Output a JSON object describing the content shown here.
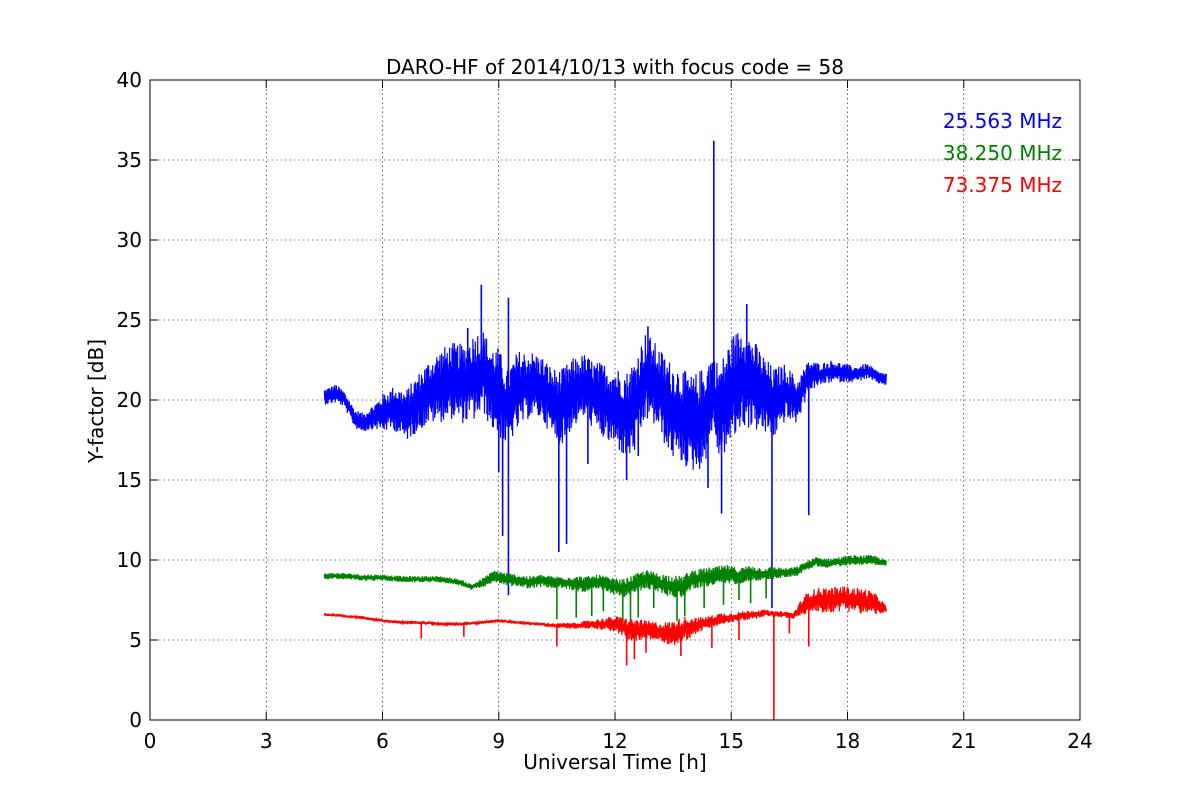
{
  "chart_data": {
    "type": "line",
    "title": "DARO-HF of 2014/10/13 with focus code = 58",
    "xlabel": "Universal Time [h]",
    "ylabel": "Y-factor [dB]",
    "xlim": [
      0,
      24
    ],
    "ylim": [
      0,
      40
    ],
    "xticks": [
      0,
      3,
      6,
      9,
      12,
      15,
      18,
      21,
      24
    ],
    "yticks": [
      0,
      5,
      10,
      15,
      20,
      25,
      30,
      35,
      40
    ],
    "grid": true,
    "legend_position": "top-right",
    "series": [
      {
        "name": "25.563 MHz",
        "color": "#0000ff",
        "x": [
          4.5,
          4.8,
          5.0,
          5.3,
          5.5,
          5.8,
          6.0,
          6.3,
          6.6,
          6.9,
          7.2,
          7.5,
          7.8,
          8.1,
          8.4,
          8.6,
          8.8,
          9.0,
          9.2,
          9.5,
          9.8,
          10.1,
          10.4,
          10.6,
          10.9,
          11.2,
          11.5,
          11.8,
          12.1,
          12.3,
          12.5,
          12.8,
          13.1,
          13.4,
          13.7,
          14.0,
          14.3,
          14.5,
          14.7,
          15.0,
          15.3,
          15.6,
          15.9,
          16.1,
          16.4,
          16.7,
          17.0,
          17.3,
          17.6,
          17.9,
          18.2,
          18.5,
          18.8,
          19.0
        ],
        "y": [
          20.2,
          20.4,
          20.1,
          18.8,
          18.6,
          19.0,
          19.2,
          19.5,
          19.0,
          19.8,
          20.5,
          20.9,
          21.2,
          21.0,
          21.5,
          21.8,
          20.8,
          20.5,
          19.5,
          20.6,
          21.0,
          20.8,
          19.8,
          19.5,
          20.4,
          20.9,
          20.2,
          19.8,
          19.4,
          19.0,
          19.6,
          21.5,
          20.8,
          19.5,
          19.0,
          18.5,
          18.9,
          20.5,
          19.2,
          20.6,
          21.5,
          20.9,
          20.2,
          19.8,
          20.5,
          19.9,
          21.5,
          21.6,
          21.8,
          21.7,
          21.6,
          21.8,
          21.4,
          21.3
        ],
        "amplitude": [
          0.5,
          0.6,
          0.5,
          0.6,
          0.6,
          0.8,
          1.2,
          1.4,
          1.6,
          1.8,
          2.0,
          2.3,
          2.4,
          2.5,
          2.8,
          2.6,
          2.6,
          2.8,
          2.4,
          2.5,
          2.1,
          2.0,
          2.2,
          2.4,
          2.2,
          2.0,
          2.2,
          2.5,
          2.6,
          2.8,
          3.0,
          2.8,
          2.6,
          3.0,
          3.0,
          3.0,
          3.2,
          2.5,
          3.0,
          3.4,
          3.2,
          2.8,
          2.4,
          2.2,
          1.8,
          1.4,
          1.0,
          0.7,
          0.7,
          0.6,
          0.5,
          0.5,
          0.4,
          0.4
        ],
        "spikes": [
          [
            8.55,
            27.2
          ],
          [
            9.25,
            26.4
          ],
          [
            14.55,
            36.2
          ],
          [
            15.4,
            26.0
          ],
          [
            12.85,
            24.6
          ],
          [
            8.2,
            24.5
          ],
          [
            9.25,
            7.8
          ],
          [
            10.55,
            10.5
          ],
          [
            10.75,
            11.0
          ],
          [
            12.3,
            15.0
          ],
          [
            14.4,
            14.5
          ],
          [
            14.75,
            12.9
          ],
          [
            16.05,
            7.0
          ],
          [
            17.0,
            12.8
          ],
          [
            9.1,
            11.5
          ],
          [
            9.0,
            15.5
          ],
          [
            11.3,
            16.0
          ],
          [
            12.6,
            16.5
          ]
        ]
      },
      {
        "name": "38.250 MHz",
        "color": "#008000",
        "x": [
          4.5,
          5.0,
          5.5,
          6.0,
          6.5,
          7.0,
          7.5,
          8.0,
          8.3,
          8.6,
          8.9,
          9.2,
          9.5,
          9.8,
          10.1,
          10.4,
          10.7,
          11.0,
          11.3,
          11.6,
          11.9,
          12.2,
          12.5,
          12.8,
          13.1,
          13.4,
          13.7,
          14.0,
          14.3,
          14.6,
          14.9,
          15.2,
          15.5,
          15.8,
          16.1,
          16.4,
          16.7,
          16.9,
          17.2,
          17.5,
          17.8,
          18.1,
          18.4,
          18.7,
          19.0
        ],
        "y": [
          9.0,
          9.0,
          8.9,
          8.9,
          8.8,
          8.8,
          8.8,
          8.6,
          8.3,
          8.6,
          9.0,
          8.8,
          8.7,
          8.6,
          8.7,
          8.6,
          8.6,
          8.5,
          8.5,
          8.6,
          8.4,
          8.2,
          8.5,
          8.8,
          8.6,
          8.4,
          8.3,
          8.8,
          8.9,
          9.0,
          9.1,
          9.0,
          9.2,
          9.1,
          9.2,
          9.2,
          9.3,
          9.6,
          9.9,
          9.8,
          9.9,
          10.0,
          10.0,
          10.0,
          9.8
        ],
        "amplitude": [
          0.2,
          0.2,
          0.2,
          0.2,
          0.2,
          0.2,
          0.2,
          0.2,
          0.2,
          0.3,
          0.4,
          0.4,
          0.4,
          0.4,
          0.4,
          0.4,
          0.4,
          0.5,
          0.5,
          0.5,
          0.5,
          0.6,
          0.6,
          0.6,
          0.6,
          0.7,
          0.7,
          0.6,
          0.6,
          0.6,
          0.6,
          0.5,
          0.5,
          0.4,
          0.4,
          0.3,
          0.3,
          0.3,
          0.3,
          0.3,
          0.3,
          0.3,
          0.3,
          0.3,
          0.2
        ],
        "spikes": [
          [
            10.5,
            6.3
          ],
          [
            11.0,
            6.4
          ],
          [
            11.4,
            6.5
          ],
          [
            11.7,
            6.8
          ],
          [
            12.2,
            6.0
          ],
          [
            12.4,
            6.2
          ],
          [
            12.6,
            6.4
          ],
          [
            13.0,
            7.0
          ],
          [
            13.6,
            6.2
          ],
          [
            13.8,
            6.5
          ],
          [
            14.3,
            7.0
          ],
          [
            14.8,
            7.2
          ],
          [
            15.2,
            7.5
          ],
          [
            15.5,
            7.3
          ],
          [
            15.9,
            7.6
          ]
        ]
      },
      {
        "name": "73.375 MHz",
        "color": "#ff0000",
        "x": [
          4.5,
          5.0,
          5.5,
          6.0,
          6.5,
          7.0,
          7.5,
          8.0,
          8.5,
          9.0,
          9.5,
          10.0,
          10.5,
          11.0,
          11.5,
          12.0,
          12.3,
          12.6,
          12.9,
          13.2,
          13.5,
          13.8,
          14.1,
          14.4,
          14.7,
          15.0,
          15.3,
          15.6,
          15.9,
          16.1,
          16.4,
          16.6,
          16.8,
          17.0,
          17.3,
          17.6,
          17.9,
          18.2,
          18.5,
          18.8,
          19.0
        ],
        "y": [
          6.6,
          6.5,
          6.4,
          6.2,
          6.1,
          6.1,
          6.0,
          6.0,
          6.1,
          6.2,
          6.1,
          6.0,
          5.9,
          5.9,
          6.0,
          6.0,
          5.7,
          5.6,
          5.6,
          5.5,
          5.4,
          5.7,
          5.9,
          6.1,
          6.3,
          6.4,
          6.5,
          6.6,
          6.7,
          6.6,
          6.6,
          6.5,
          7.0,
          7.4,
          7.5,
          7.5,
          7.6,
          7.5,
          7.4,
          7.2,
          6.9
        ],
        "amplitude": [
          0.1,
          0.1,
          0.1,
          0.1,
          0.1,
          0.1,
          0.1,
          0.1,
          0.1,
          0.1,
          0.1,
          0.1,
          0.15,
          0.2,
          0.3,
          0.5,
          0.7,
          0.7,
          0.6,
          0.6,
          0.8,
          0.8,
          0.5,
          0.4,
          0.4,
          0.3,
          0.3,
          0.3,
          0.2,
          0.2,
          0.2,
          0.2,
          0.5,
          0.7,
          0.8,
          0.8,
          0.8,
          0.8,
          0.8,
          0.6,
          0.2
        ],
        "spikes": [
          [
            7.0,
            5.1
          ],
          [
            8.1,
            5.2
          ],
          [
            10.5,
            4.6
          ],
          [
            12.3,
            3.4
          ],
          [
            12.5,
            3.8
          ],
          [
            12.8,
            4.2
          ],
          [
            13.7,
            4.0
          ],
          [
            14.5,
            4.5
          ],
          [
            15.2,
            5.0
          ],
          [
            16.1,
            0.0
          ],
          [
            16.5,
            5.4
          ],
          [
            17.0,
            4.6
          ]
        ]
      }
    ]
  }
}
